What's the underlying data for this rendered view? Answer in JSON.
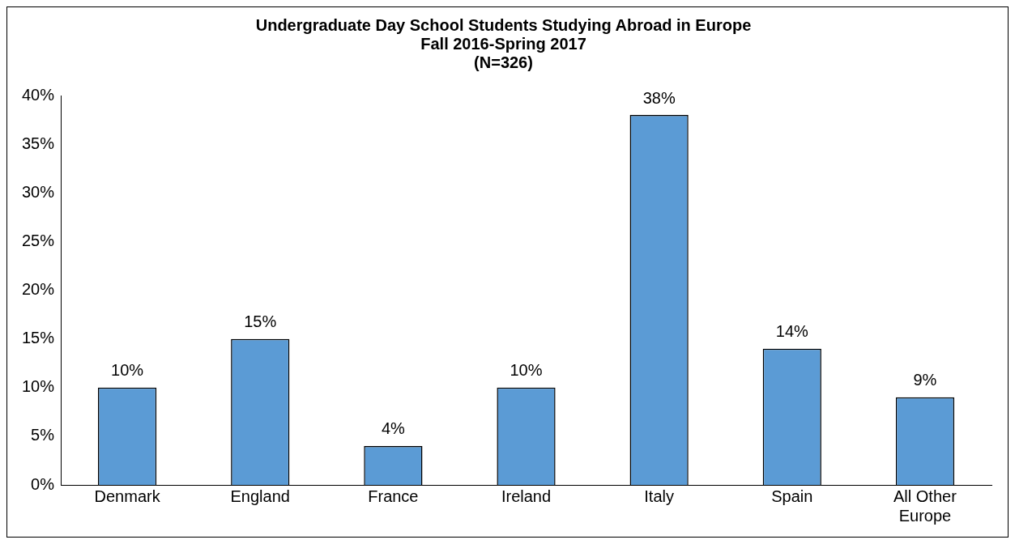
{
  "chart_data": {
    "type": "bar",
    "title": "Undergraduate Day School Students Studying Abroad in Europe",
    "subtitle": "Fall 2016-Spring 2017\n(N=326)",
    "categories": [
      "Denmark",
      "England",
      "France",
      "Ireland",
      "Italy",
      "Spain",
      "All Other Europe"
    ],
    "values": [
      10,
      15,
      4,
      10,
      38,
      14,
      9
    ],
    "color": "#5b9bd5",
    "value_labels": [
      "10%",
      "15%",
      "4%",
      "10%",
      "38%",
      "14%",
      "9%"
    ],
    "ylim": [
      0,
      40
    ],
    "yticks": [
      {
        "value": 0,
        "label": "0%"
      },
      {
        "value": 5,
        "label": "5%"
      },
      {
        "value": 10,
        "label": "10%"
      },
      {
        "value": 15,
        "label": "15%"
      },
      {
        "value": 20,
        "label": "20%"
      },
      {
        "value": 25,
        "label": "25%"
      },
      {
        "value": 30,
        "label": "30%"
      },
      {
        "value": 35,
        "label": "35%"
      },
      {
        "value": 40,
        "label": "40%"
      }
    ],
    "grid": false,
    "legend": false
  }
}
